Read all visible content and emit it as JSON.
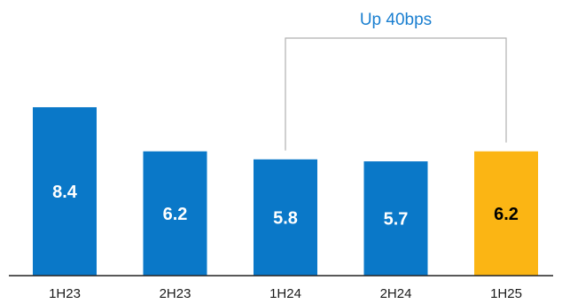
{
  "chart_data": {
    "type": "bar",
    "categories": [
      "1H23",
      "2H23",
      "1H24",
      "2H24",
      "1H25"
    ],
    "values": [
      8.4,
      6.2,
      5.8,
      5.7,
      6.2
    ],
    "value_labels": [
      "8.4",
      "6.2",
      "5.8",
      "5.7",
      "6.2"
    ],
    "title": "",
    "xlabel": "",
    "ylabel": "",
    "ylim": [
      0,
      10
    ],
    "grid": false,
    "legend": "none",
    "colors": {
      "bar": "#0a78c8",
      "highlight": "#fbb514",
      "label_on_bar": "#ffffff",
      "label_on_highlight": "#000000",
      "annotation_text": "#1a7fd0",
      "bracket": "#b0b0b0",
      "axis": "#222222"
    },
    "highlight_index": 4,
    "annotation": {
      "text": "Up 40bps",
      "from_category": "1H24",
      "to_category": "1H25"
    }
  }
}
